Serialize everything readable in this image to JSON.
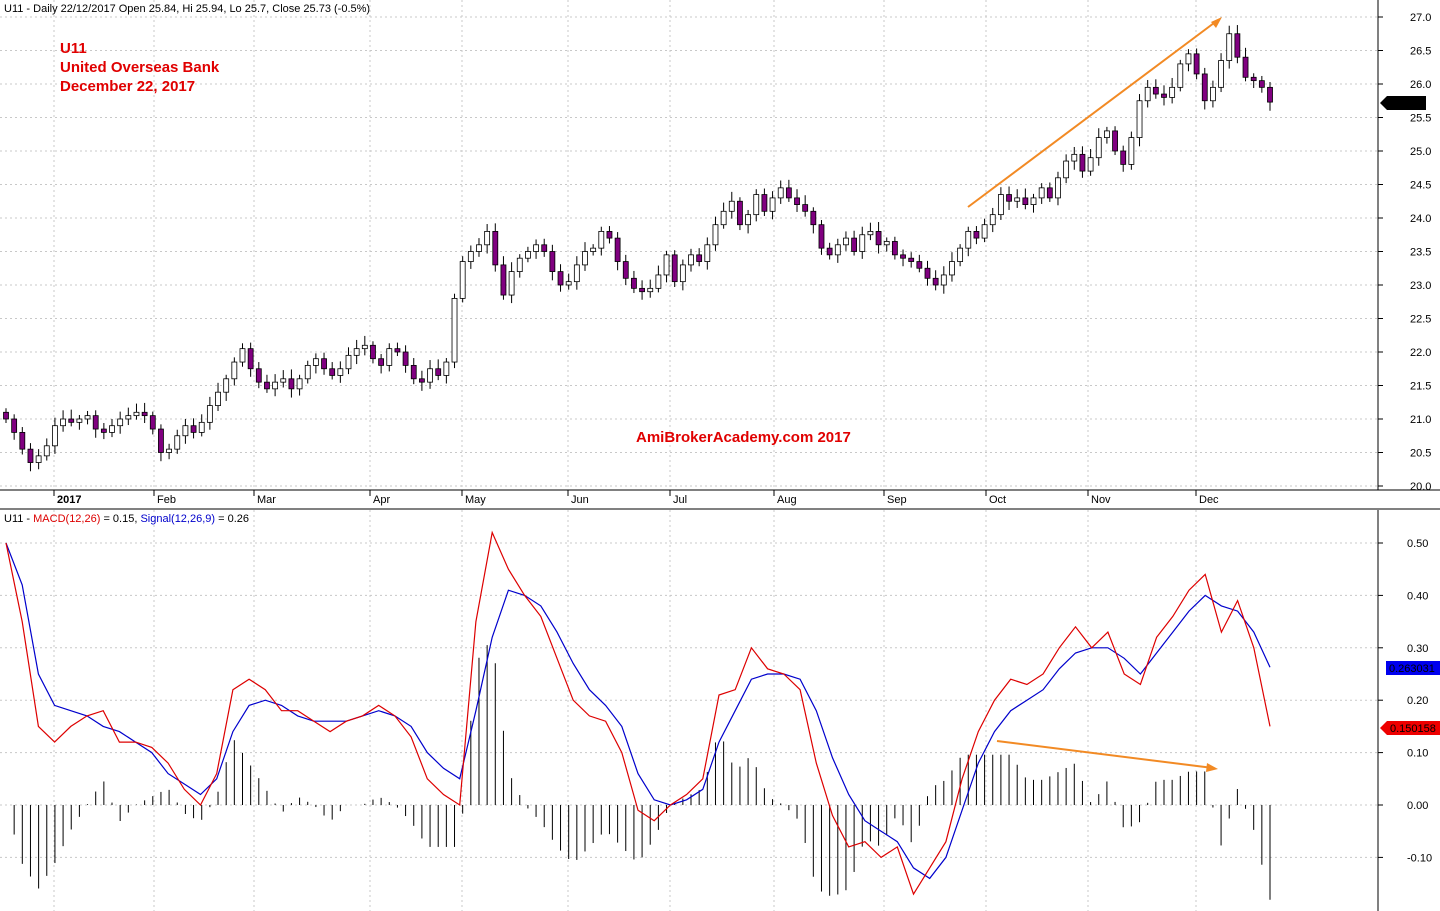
{
  "header": {
    "price": "U11 - Daily 22/12/2017 Open 25.84, Hi 25.94, Lo 25.7, Close 25.73 (-0.5%)",
    "macd_prefix": "U11 - ",
    "macd_label": "MACD(12,26)",
    "macd_value": " = 0.15, ",
    "signal_label": "Signal(12,26,9)",
    "signal_value": " = 0.26"
  },
  "annotations": {
    "ticker": "U11",
    "company": "United Overseas Bank",
    "date": "December 22, 2017",
    "watermark": "AmiBrokerAcademy.com  2017"
  },
  "badges": {
    "last_price": "25.73",
    "signal": "0.263031",
    "macd": "0.150158"
  },
  "colors": {
    "candle_up": "#ffffff",
    "candle_down": "#800080",
    "macd": "#dd0000",
    "signal": "#0000cc",
    "trend": "#f28a24",
    "annotation_text": "#e00000",
    "badge_last": "#000000",
    "badge_signal": "#0000ee",
    "badge_macd": "#ee0000"
  },
  "chart_data": [
    {
      "type": "candlestick",
      "series_label": "U11 - Daily",
      "y_ticks": [
        20.0,
        20.5,
        21.0,
        21.5,
        22.0,
        22.5,
        23.0,
        23.5,
        24.0,
        24.5,
        25.0,
        25.5,
        26.0,
        26.5,
        27.0
      ],
      "ylim": [
        19.9,
        27.1
      ],
      "months": [
        "2017",
        "Feb",
        "Mar",
        "Apr",
        "May",
        "Jun",
        "Jul",
        "Aug",
        "Sep",
        "Oct",
        "Nov",
        "Dec"
      ],
      "closes": [
        21.0,
        20.8,
        20.55,
        20.35,
        20.45,
        20.6,
        20.9,
        21.0,
        20.95,
        21.0,
        21.05,
        20.85,
        20.8,
        20.9,
        21.0,
        21.05,
        21.1,
        21.05,
        20.85,
        20.5,
        20.55,
        20.75,
        20.9,
        20.8,
        20.95,
        21.2,
        21.4,
        21.6,
        21.85,
        22.05,
        21.75,
        21.55,
        21.45,
        21.55,
        21.6,
        21.45,
        21.6,
        21.8,
        21.9,
        21.75,
        21.65,
        21.75,
        21.95,
        22.05,
        22.1,
        21.9,
        21.8,
        22.05,
        22.0,
        21.8,
        21.6,
        21.55,
        21.75,
        21.65,
        21.85,
        22.8,
        23.35,
        23.5,
        23.6,
        23.8,
        23.3,
        22.85,
        23.2,
        23.4,
        23.5,
        23.6,
        23.5,
        23.2,
        23.0,
        23.05,
        23.3,
        23.5,
        23.55,
        23.8,
        23.7,
        23.35,
        23.1,
        22.95,
        22.9,
        22.95,
        23.15,
        23.45,
        23.05,
        23.3,
        23.45,
        23.35,
        23.6,
        23.9,
        24.1,
        24.25,
        23.9,
        24.05,
        24.35,
        24.1,
        24.3,
        24.45,
        24.3,
        24.2,
        24.1,
        23.9,
        23.55,
        23.45,
        23.6,
        23.7,
        23.5,
        23.75,
        23.8,
        23.6,
        23.65,
        23.45,
        23.4,
        23.35,
        23.25,
        23.1,
        23.0,
        23.15,
        23.35,
        23.55,
        23.8,
        23.7,
        23.9,
        24.05,
        24.35,
        24.25,
        24.3,
        24.2,
        24.3,
        24.45,
        24.3,
        24.6,
        24.85,
        24.95,
        24.7,
        24.9,
        25.2,
        25.3,
        25.0,
        24.8,
        25.2,
        25.75,
        25.95,
        25.85,
        25.8,
        25.95,
        26.3,
        26.45,
        26.15,
        25.75,
        25.95,
        26.35,
        26.75,
        26.4,
        26.1,
        26.05,
        25.95,
        25.73
      ],
      "macd": [
        0.5,
        0.35,
        0.15,
        0.12,
        0.15,
        0.17,
        0.18,
        0.12,
        0.12,
        0.11,
        0.08,
        0.03,
        0.0,
        0.06,
        0.22,
        0.24,
        0.22,
        0.18,
        0.18,
        0.16,
        0.14,
        0.16,
        0.17,
        0.19,
        0.17,
        0.13,
        0.05,
        0.02,
        0.0,
        0.35,
        0.52,
        0.45,
        0.4,
        0.36,
        0.28,
        0.2,
        0.17,
        0.16,
        0.1,
        -0.01,
        -0.03,
        0.0,
        0.02,
        0.05,
        0.21,
        0.22,
        0.3,
        0.26,
        0.25,
        0.22,
        0.08,
        -0.02,
        -0.08,
        -0.07,
        -0.1,
        -0.08,
        -0.17,
        -0.12,
        -0.07,
        0.05,
        0.14,
        0.2,
        0.24,
        0.23,
        0.25,
        0.3,
        0.34,
        0.3,
        0.33,
        0.25,
        0.23,
        0.32,
        0.36,
        0.41,
        0.44,
        0.33,
        0.39,
        0.3,
        0.15
      ],
      "signal": [
        0.5,
        0.42,
        0.25,
        0.19,
        0.18,
        0.17,
        0.15,
        0.14,
        0.12,
        0.1,
        0.06,
        0.04,
        0.02,
        0.05,
        0.14,
        0.19,
        0.2,
        0.19,
        0.17,
        0.16,
        0.16,
        0.16,
        0.17,
        0.18,
        0.17,
        0.15,
        0.1,
        0.07,
        0.05,
        0.18,
        0.32,
        0.41,
        0.4,
        0.38,
        0.33,
        0.27,
        0.22,
        0.19,
        0.15,
        0.06,
        0.01,
        0.0,
        0.01,
        0.03,
        0.12,
        0.18,
        0.24,
        0.25,
        0.25,
        0.24,
        0.18,
        0.09,
        0.02,
        -0.03,
        -0.05,
        -0.07,
        -0.12,
        -0.14,
        -0.1,
        -0.01,
        0.08,
        0.14,
        0.18,
        0.2,
        0.22,
        0.26,
        0.29,
        0.3,
        0.3,
        0.28,
        0.25,
        0.29,
        0.33,
        0.37,
        0.4,
        0.38,
        0.37,
        0.33,
        0.263
      ],
      "y_ticks_macd": [
        -0.1,
        0.0,
        0.1,
        0.2,
        0.3,
        0.4,
        0.5
      ],
      "ylim_macd": [
        -0.2,
        0.55
      ]
    }
  ]
}
